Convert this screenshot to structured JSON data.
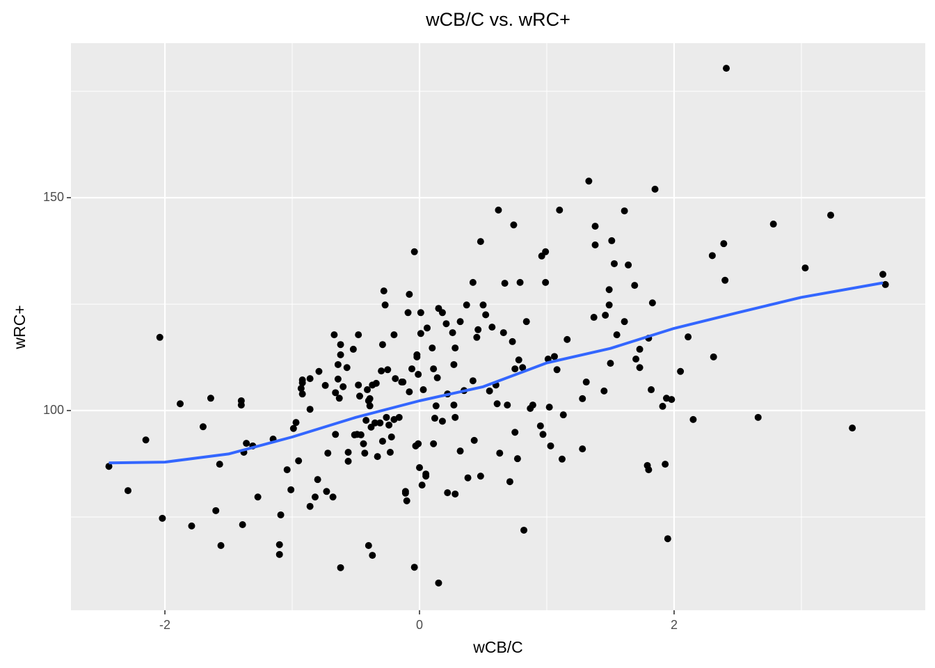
{
  "chart_data": {
    "type": "scatter",
    "title": "wCB/C vs. wRC+",
    "x_label": "wCB/C",
    "y_label": "wRC+",
    "x": [
      -2.44,
      -2.29,
      -2.15,
      -2.04,
      -2.02,
      -1.88,
      -1.79,
      -1.7,
      -1.64,
      -1.6,
      -1.57,
      -1.56,
      -1.4,
      -1.4,
      -1.39,
      -1.38,
      -1.36,
      -1.31,
      -1.27,
      -1.15,
      -1.1,
      -1.1,
      -1.09,
      -1.04,
      -1.01,
      -0.99,
      -0.97,
      -0.95,
      -0.93,
      -0.92,
      -0.92,
      -0.92,
      -0.86,
      -0.86,
      -0.86,
      -0.82,
      -0.8,
      -0.79,
      -0.74,
      -0.73,
      -0.72,
      -0.68,
      -0.67,
      -0.66,
      -0.66,
      -0.64,
      -0.64,
      -0.63,
      -0.62,
      -0.62,
      -0.62,
      -0.6,
      -0.57,
      -0.56,
      -0.56,
      -0.52,
      -0.51,
      -0.49,
      -0.48,
      -0.48,
      -0.47,
      -0.46,
      -0.44,
      -0.43,
      -0.42,
      -0.41,
      -0.4,
      -0.4,
      -0.39,
      -0.39,
      -0.38,
      -0.37,
      -0.37,
      -0.35,
      -0.34,
      -0.33,
      -0.31,
      -0.3,
      -0.29,
      -0.29,
      -0.28,
      -0.27,
      -0.26,
      -0.25,
      -0.24,
      -0.23,
      -0.22,
      -0.2,
      -0.2,
      -0.19,
      -0.16,
      -0.14,
      -0.13,
      -0.11,
      -0.11,
      -0.1,
      -0.09,
      -0.08,
      -0.08,
      -0.06,
      -0.04,
      -0.04,
      -0.03,
      -0.02,
      -0.01,
      -0.02,
      -0.01,
      0.0,
      0.01,
      0.01,
      0.02,
      0.03,
      0.05,
      0.05,
      0.06,
      0.1,
      0.11,
      0.11,
      0.12,
      0.13,
      0.14,
      0.15,
      0.15,
      0.18,
      0.18,
      0.21,
      0.22,
      0.22,
      0.26,
      0.27,
      0.27,
      0.28,
      0.28,
      0.28,
      0.32,
      0.32,
      0.35,
      0.37,
      0.38,
      0.42,
      0.42,
      0.43,
      0.45,
      0.46,
      0.48,
      0.48,
      0.5,
      0.52,
      0.55,
      0.57,
      0.6,
      0.61,
      0.62,
      0.63,
      0.66,
      0.67,
      0.69,
      0.71,
      0.73,
      0.74,
      0.75,
      0.75,
      0.77,
      0.78,
      0.79,
      0.81,
      0.82,
      0.84,
      0.87,
      0.89,
      0.95,
      0.96,
      0.97,
      0.99,
      0.99,
      1.01,
      1.02,
      1.03,
      1.06,
      1.08,
      1.1,
      1.12,
      1.13,
      1.16,
      1.28,
      1.28,
      1.31,
      1.33,
      1.37,
      1.38,
      1.38,
      1.45,
      1.46,
      1.49,
      1.49,
      1.5,
      1.51,
      1.53,
      1.55,
      1.61,
      1.61,
      1.64,
      1.69,
      1.7,
      1.73,
      1.79,
      1.8,
      1.82,
      1.83,
      1.85,
      1.91,
      1.93,
      1.94,
      1.95,
      1.98,
      2.05,
      2.11,
      2.15,
      2.3,
      2.31,
      2.39,
      2.4,
      2.41,
      2.66,
      2.78,
      3.03,
      3.23,
      3.4,
      3.64,
      3.66,
      1.8,
      1.73
    ],
    "values": [
      86.9,
      81.2,
      93.1,
      117.2,
      74.7,
      101.6,
      72.9,
      96.2,
      102.9,
      76.5,
      87.4,
      68.3,
      102.3,
      101.3,
      73.2,
      90.2,
      92.3,
      91.7,
      79.7,
      93.3,
      68.5,
      66.2,
      75.5,
      86.1,
      81.4,
      95.8,
      97.2,
      88.2,
      105.2,
      107.2,
      106.5,
      103.9,
      100.3,
      107.5,
      77.5,
      79.7,
      83.8,
      109.2,
      105.9,
      81.0,
      90.0,
      79.7,
      117.8,
      94.4,
      104.2,
      107.4,
      110.8,
      102.9,
      63.1,
      115.5,
      113.1,
      105.6,
      110.1,
      88.1,
      90.2,
      114.4,
      94.3,
      94.4,
      117.8,
      106.0,
      103.4,
      94.3,
      92.2,
      90.0,
      97.7,
      104.9,
      68.3,
      102.3,
      101.1,
      102.8,
      96.1,
      106.0,
      66.0,
      97.1,
      106.4,
      89.2,
      97.1,
      109.3,
      115.5,
      92.8,
      128.1,
      124.8,
      98.4,
      109.6,
      96.6,
      90.2,
      93.8,
      97.9,
      117.8,
      107.5,
      98.4,
      106.7,
      106.7,
      81.0,
      80.6,
      78.8,
      123.0,
      127.3,
      104.4,
      109.8,
      137.3,
      63.2,
      91.7,
      112.6,
      92.2,
      113.1,
      108.5,
      86.6,
      123.0,
      118.1,
      82.5,
      104.9,
      85.1,
      84.6,
      119.4,
      114.7,
      109.8,
      92.2,
      98.2,
      101.1,
      107.7,
      59.5,
      124.0,
      123.0,
      97.5,
      120.4,
      103.9,
      80.7,
      118.3,
      101.3,
      110.8,
      80.4,
      98.4,
      114.7,
      90.5,
      120.9,
      104.7,
      124.8,
      84.2,
      130.1,
      107.0,
      93.0,
      117.2,
      119.0,
      139.7,
      84.6,
      124.8,
      122.5,
      104.6,
      119.6,
      106.0,
      101.6,
      147.1,
      90.0,
      118.3,
      129.9,
      101.3,
      83.3,
      116.2,
      143.6,
      109.8,
      94.9,
      88.7,
      111.9,
      130.1,
      110.1,
      71.9,
      120.9,
      100.5,
      101.3,
      96.4,
      136.3,
      94.4,
      137.3,
      130.1,
      112.1,
      100.8,
      91.7,
      112.7,
      109.6,
      147.1,
      88.6,
      99.0,
      116.7,
      102.8,
      91.0,
      106.7,
      153.9,
      121.9,
      143.3,
      138.9,
      104.6,
      122.4,
      128.4,
      124.8,
      111.1,
      139.9,
      134.5,
      117.8,
      146.9,
      120.9,
      134.2,
      129.4,
      112.1,
      114.4,
      87.1,
      86.1,
      104.9,
      125.3,
      152.0,
      101.0,
      87.4,
      102.9,
      69.9,
      102.6,
      109.2,
      117.3,
      97.9,
      136.4,
      112.6,
      139.2,
      130.6,
      180.4,
      98.4,
      143.8,
      133.5,
      145.9,
      95.9,
      132.0,
      129.6,
      117.0,
      110.1
    ],
    "color": "#000000",
    "smooth": {
      "x": [
        -2.44,
        -2.0,
        -1.5,
        -1.0,
        -0.5,
        0.0,
        0.5,
        1.0,
        1.5,
        2.0,
        2.5,
        3.0,
        3.64
      ],
      "values": [
        87.7,
        87.9,
        89.8,
        93.8,
        98.4,
        102.3,
        105.6,
        111.2,
        114.6,
        119.3,
        123.0,
        126.6,
        130.0
      ],
      "color": "#3366ff"
    },
    "xlim": [
      -2.738,
      3.973
    ],
    "ylim": [
      53.1,
      186.3
    ],
    "xticks": [
      -2,
      0,
      2
    ],
    "yticks": [
      100,
      150
    ],
    "x_minor_ticks": [
      -1,
      1,
      3
    ],
    "y_minor_ticks": [
      75,
      125,
      175
    ],
    "grid": true
  }
}
